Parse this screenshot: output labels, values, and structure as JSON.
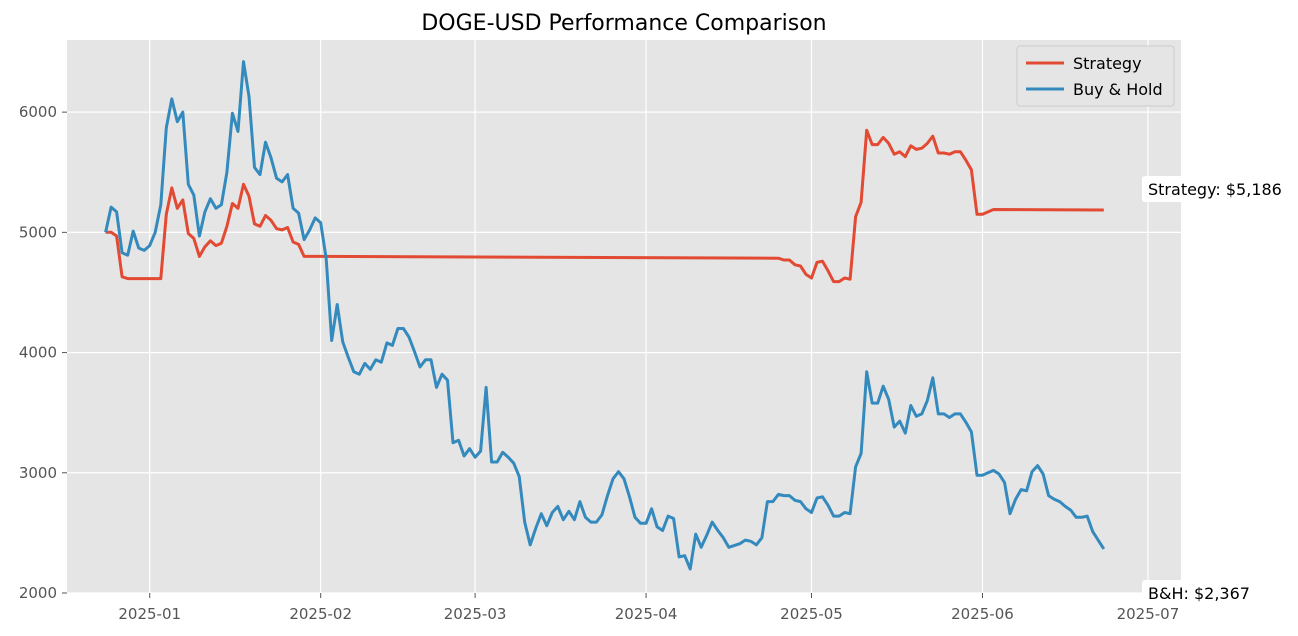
{
  "chart_data": {
    "type": "line",
    "title": "DOGE-USD Performance Comparison",
    "xlabel": "",
    "ylabel": "",
    "xlim": [
      "2024-12-17",
      "2025-07-07"
    ],
    "ylim": [
      2000,
      6600
    ],
    "x_ticks": [
      "2025-01",
      "2025-02",
      "2025-03",
      "2025-04",
      "2025-05",
      "2025-06",
      "2025-07"
    ],
    "y_ticks": [
      2000,
      3000,
      4000,
      5000,
      6000
    ],
    "grid": true,
    "legend_position": "top-right",
    "background": "#e5e5e5",
    "series": [
      {
        "name": "Strategy",
        "color": "#e24a33",
        "points": [
          [
            "2024-12-24",
            5000
          ],
          [
            "2024-12-25",
            5000
          ],
          [
            "2024-12-26",
            4970
          ],
          [
            "2024-12-27",
            4630
          ],
          [
            "2024-12-28",
            4615
          ],
          [
            "2024-12-29",
            4615
          ],
          [
            "2025-01-01",
            4615
          ],
          [
            "2025-01-03",
            4615
          ],
          [
            "2025-01-04",
            5150
          ],
          [
            "2025-01-05",
            5370
          ],
          [
            "2025-01-06",
            5200
          ],
          [
            "2025-01-07",
            5270
          ],
          [
            "2025-01-08",
            4990
          ],
          [
            "2025-01-09",
            4950
          ],
          [
            "2025-01-10",
            4800
          ],
          [
            "2025-01-11",
            4880
          ],
          [
            "2025-01-12",
            4930
          ],
          [
            "2025-01-13",
            4890
          ],
          [
            "2025-01-14",
            4910
          ],
          [
            "2025-01-15",
            5050
          ],
          [
            "2025-01-16",
            5240
          ],
          [
            "2025-01-17",
            5200
          ],
          [
            "2025-01-18",
            5400
          ],
          [
            "2025-01-19",
            5300
          ],
          [
            "2025-01-20",
            5070
          ],
          [
            "2025-01-21",
            5050
          ],
          [
            "2025-01-22",
            5140
          ],
          [
            "2025-01-23",
            5100
          ],
          [
            "2025-01-24",
            5030
          ],
          [
            "2025-01-25",
            5020
          ],
          [
            "2025-01-26",
            5040
          ],
          [
            "2025-01-27",
            4920
          ],
          [
            "2025-01-28",
            4900
          ],
          [
            "2025-01-29",
            4800
          ],
          [
            "2025-02-01",
            4800
          ],
          [
            "2025-04-25",
            4785
          ],
          [
            "2025-04-26",
            4770
          ],
          [
            "2025-04-27",
            4770
          ],
          [
            "2025-04-28",
            4730
          ],
          [
            "2025-04-29",
            4720
          ],
          [
            "2025-04-30",
            4650
          ],
          [
            "2025-05-01",
            4620
          ],
          [
            "2025-05-02",
            4750
          ],
          [
            "2025-05-03",
            4760
          ],
          [
            "2025-05-04",
            4680
          ],
          [
            "2025-05-05",
            4590
          ],
          [
            "2025-05-06",
            4590
          ],
          [
            "2025-05-07",
            4620
          ],
          [
            "2025-05-08",
            4610
          ],
          [
            "2025-05-09",
            5130
          ],
          [
            "2025-05-10",
            5250
          ],
          [
            "2025-05-11",
            5850
          ],
          [
            "2025-05-12",
            5730
          ],
          [
            "2025-05-13",
            5730
          ],
          [
            "2025-05-14",
            5790
          ],
          [
            "2025-05-15",
            5740
          ],
          [
            "2025-05-16",
            5650
          ],
          [
            "2025-05-17",
            5670
          ],
          [
            "2025-05-18",
            5630
          ],
          [
            "2025-05-19",
            5720
          ],
          [
            "2025-05-20",
            5690
          ],
          [
            "2025-05-21",
            5700
          ],
          [
            "2025-05-22",
            5740
          ],
          [
            "2025-05-23",
            5800
          ],
          [
            "2025-05-24",
            5660
          ],
          [
            "2025-05-25",
            5660
          ],
          [
            "2025-05-26",
            5650
          ],
          [
            "2025-05-27",
            5670
          ],
          [
            "2025-05-28",
            5670
          ],
          [
            "2025-05-29",
            5600
          ],
          [
            "2025-05-30",
            5520
          ],
          [
            "2025-05-31",
            5150
          ],
          [
            "2025-06-01",
            5150
          ],
          [
            "2025-06-02",
            5170
          ],
          [
            "2025-06-03",
            5190
          ],
          [
            "2025-06-23",
            5186
          ]
        ]
      },
      {
        "name": "Buy & Hold",
        "color": "#348abd",
        "points": [
          [
            "2024-12-24",
            5000
          ],
          [
            "2024-12-25",
            5210
          ],
          [
            "2024-12-26",
            5170
          ],
          [
            "2024-12-27",
            4830
          ],
          [
            "2024-12-28",
            4810
          ],
          [
            "2024-12-29",
            5010
          ],
          [
            "2024-12-30",
            4870
          ],
          [
            "2024-12-31",
            4850
          ],
          [
            "2025-01-01",
            4890
          ],
          [
            "2025-01-02",
            5000
          ],
          [
            "2025-01-03",
            5230
          ],
          [
            "2025-01-04",
            5870
          ],
          [
            "2025-01-05",
            6110
          ],
          [
            "2025-01-06",
            5920
          ],
          [
            "2025-01-07",
            6000
          ],
          [
            "2025-01-08",
            5400
          ],
          [
            "2025-01-09",
            5310
          ],
          [
            "2025-01-10",
            4970
          ],
          [
            "2025-01-11",
            5170
          ],
          [
            "2025-01-12",
            5280
          ],
          [
            "2025-01-13",
            5200
          ],
          [
            "2025-01-14",
            5230
          ],
          [
            "2025-01-15",
            5500
          ],
          [
            "2025-01-16",
            5990
          ],
          [
            "2025-01-17",
            5840
          ],
          [
            "2025-01-18",
            6420
          ],
          [
            "2025-01-19",
            6130
          ],
          [
            "2025-01-20",
            5540
          ],
          [
            "2025-01-21",
            5480
          ],
          [
            "2025-01-22",
            5750
          ],
          [
            "2025-01-23",
            5620
          ],
          [
            "2025-01-24",
            5450
          ],
          [
            "2025-01-25",
            5420
          ],
          [
            "2025-01-26",
            5480
          ],
          [
            "2025-01-27",
            5200
          ],
          [
            "2025-01-28",
            5160
          ],
          [
            "2025-01-29",
            4940
          ],
          [
            "2025-01-30",
            5020
          ],
          [
            "2025-01-31",
            5120
          ],
          [
            "2025-02-01",
            5080
          ],
          [
            "2025-02-02",
            4780
          ],
          [
            "2025-02-03",
            4100
          ],
          [
            "2025-02-04",
            4400
          ],
          [
            "2025-02-05",
            4090
          ],
          [
            "2025-02-06",
            3960
          ],
          [
            "2025-02-07",
            3840
          ],
          [
            "2025-02-08",
            3820
          ],
          [
            "2025-02-09",
            3910
          ],
          [
            "2025-02-10",
            3860
          ],
          [
            "2025-02-11",
            3940
          ],
          [
            "2025-02-12",
            3920
          ],
          [
            "2025-02-13",
            4080
          ],
          [
            "2025-02-14",
            4060
          ],
          [
            "2025-02-15",
            4200
          ],
          [
            "2025-02-16",
            4200
          ],
          [
            "2025-02-17",
            4130
          ],
          [
            "2025-02-18",
            4010
          ],
          [
            "2025-02-19",
            3880
          ],
          [
            "2025-02-20",
            3940
          ],
          [
            "2025-02-21",
            3940
          ],
          [
            "2025-02-22",
            3710
          ],
          [
            "2025-02-23",
            3820
          ],
          [
            "2025-02-24",
            3770
          ],
          [
            "2025-02-25",
            3250
          ],
          [
            "2025-02-26",
            3270
          ],
          [
            "2025-02-27",
            3140
          ],
          [
            "2025-02-28",
            3200
          ],
          [
            "2025-03-01",
            3130
          ],
          [
            "2025-03-02",
            3180
          ],
          [
            "2025-03-03",
            3710
          ],
          [
            "2025-03-04",
            3090
          ],
          [
            "2025-03-05",
            3090
          ],
          [
            "2025-03-06",
            3170
          ],
          [
            "2025-03-07",
            3130
          ],
          [
            "2025-03-08",
            3080
          ],
          [
            "2025-03-09",
            2970
          ],
          [
            "2025-03-10",
            2590
          ],
          [
            "2025-03-11",
            2400
          ],
          [
            "2025-03-12",
            2540
          ],
          [
            "2025-03-13",
            2660
          ],
          [
            "2025-03-14",
            2560
          ],
          [
            "2025-03-15",
            2670
          ],
          [
            "2025-03-16",
            2720
          ],
          [
            "2025-03-17",
            2610
          ],
          [
            "2025-03-18",
            2680
          ],
          [
            "2025-03-19",
            2610
          ],
          [
            "2025-03-20",
            2760
          ],
          [
            "2025-03-21",
            2630
          ],
          [
            "2025-03-22",
            2590
          ],
          [
            "2025-03-23",
            2590
          ],
          [
            "2025-03-24",
            2650
          ],
          [
            "2025-03-25",
            2810
          ],
          [
            "2025-03-26",
            2950
          ],
          [
            "2025-03-27",
            3010
          ],
          [
            "2025-03-28",
            2950
          ],
          [
            "2025-03-29",
            2800
          ],
          [
            "2025-03-30",
            2630
          ],
          [
            "2025-03-31",
            2580
          ],
          [
            "2025-04-01",
            2580
          ],
          [
            "2025-04-02",
            2700
          ],
          [
            "2025-04-03",
            2550
          ],
          [
            "2025-04-04",
            2520
          ],
          [
            "2025-04-05",
            2640
          ],
          [
            "2025-04-06",
            2620
          ],
          [
            "2025-04-07",
            2300
          ],
          [
            "2025-04-08",
            2310
          ],
          [
            "2025-04-09",
            2200
          ],
          [
            "2025-04-10",
            2490
          ],
          [
            "2025-04-11",
            2380
          ],
          [
            "2025-04-12",
            2480
          ],
          [
            "2025-04-13",
            2590
          ],
          [
            "2025-04-14",
            2520
          ],
          [
            "2025-04-15",
            2460
          ],
          [
            "2025-04-16",
            2380
          ],
          [
            "2025-04-18",
            2410
          ],
          [
            "2025-04-19",
            2440
          ],
          [
            "2025-04-20",
            2430
          ],
          [
            "2025-04-21",
            2400
          ],
          [
            "2025-04-22",
            2460
          ],
          [
            "2025-04-23",
            2760
          ],
          [
            "2025-04-24",
            2760
          ],
          [
            "2025-04-25",
            2820
          ],
          [
            "2025-04-26",
            2810
          ],
          [
            "2025-04-27",
            2810
          ],
          [
            "2025-04-28",
            2770
          ],
          [
            "2025-04-29",
            2760
          ],
          [
            "2025-04-30",
            2700
          ],
          [
            "2025-05-01",
            2670
          ],
          [
            "2025-05-02",
            2790
          ],
          [
            "2025-05-03",
            2800
          ],
          [
            "2025-05-04",
            2730
          ],
          [
            "2025-05-05",
            2640
          ],
          [
            "2025-05-06",
            2640
          ],
          [
            "2025-05-07",
            2670
          ],
          [
            "2025-05-08",
            2660
          ],
          [
            "2025-05-09",
            3050
          ],
          [
            "2025-05-10",
            3160
          ],
          [
            "2025-05-11",
            3840
          ],
          [
            "2025-05-12",
            3580
          ],
          [
            "2025-05-13",
            3580
          ],
          [
            "2025-05-14",
            3720
          ],
          [
            "2025-05-15",
            3610
          ],
          [
            "2025-05-16",
            3380
          ],
          [
            "2025-05-17",
            3430
          ],
          [
            "2025-05-18",
            3330
          ],
          [
            "2025-05-19",
            3560
          ],
          [
            "2025-05-20",
            3470
          ],
          [
            "2025-05-21",
            3490
          ],
          [
            "2025-05-22",
            3600
          ],
          [
            "2025-05-23",
            3790
          ],
          [
            "2025-05-24",
            3490
          ],
          [
            "2025-05-25",
            3490
          ],
          [
            "2025-05-26",
            3460
          ],
          [
            "2025-05-27",
            3490
          ],
          [
            "2025-05-28",
            3490
          ],
          [
            "2025-05-29",
            3420
          ],
          [
            "2025-05-30",
            3340
          ],
          [
            "2025-05-31",
            2980
          ],
          [
            "2025-06-01",
            2980
          ],
          [
            "2025-06-02",
            3000
          ],
          [
            "2025-06-03",
            3020
          ],
          [
            "2025-06-04",
            2990
          ],
          [
            "2025-06-05",
            2920
          ],
          [
            "2025-06-06",
            2660
          ],
          [
            "2025-06-07",
            2780
          ],
          [
            "2025-06-08",
            2860
          ],
          [
            "2025-06-09",
            2850
          ],
          [
            "2025-06-10",
            3010
          ],
          [
            "2025-06-11",
            3060
          ],
          [
            "2025-06-12",
            2990
          ],
          [
            "2025-06-13",
            2810
          ],
          [
            "2025-06-14",
            2780
          ],
          [
            "2025-06-15",
            2760
          ],
          [
            "2025-06-16",
            2720
          ],
          [
            "2025-06-17",
            2690
          ],
          [
            "2025-06-18",
            2630
          ],
          [
            "2025-06-19",
            2630
          ],
          [
            "2025-06-20",
            2640
          ],
          [
            "2025-06-21",
            2510
          ],
          [
            "2025-06-23",
            2367
          ]
        ]
      }
    ],
    "annotations": [
      {
        "text": "Strategy: $5,186",
        "x": "2025-06-23",
        "y": 5186
      },
      {
        "text": "B&H: $2,367",
        "x": "2025-06-23",
        "y": 2000
      }
    ]
  }
}
